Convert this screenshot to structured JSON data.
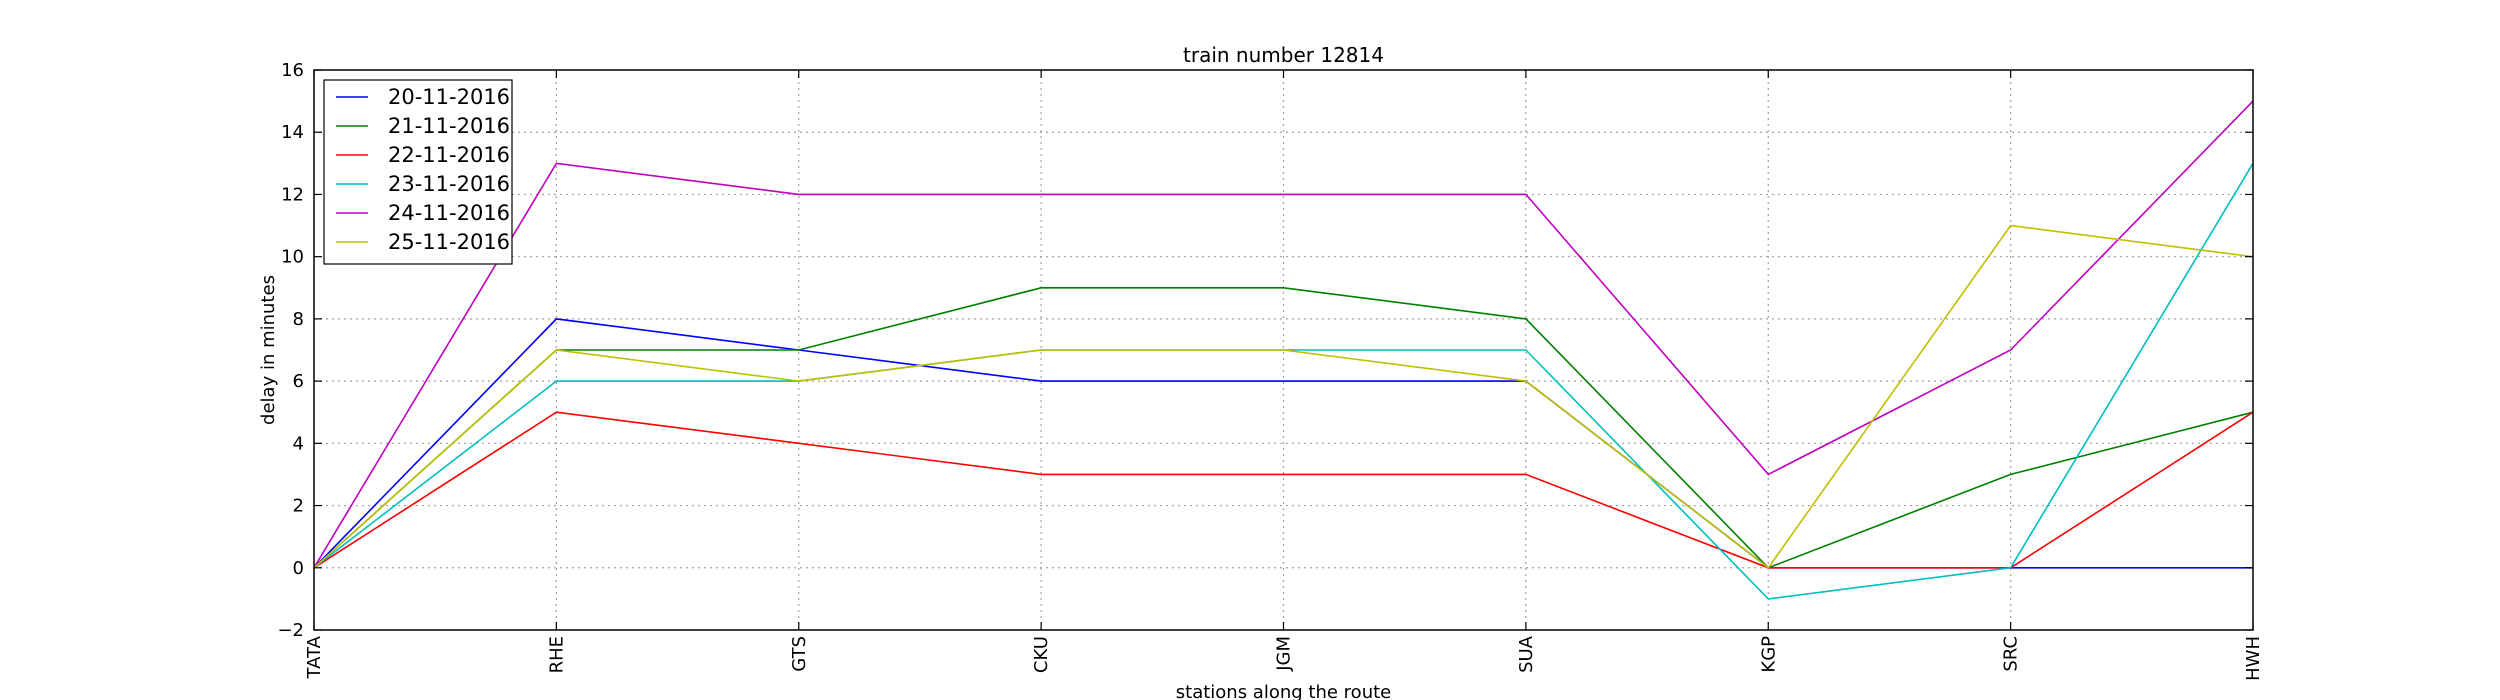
{
  "chart_data": {
    "type": "line",
    "title": "train number 12814",
    "xlabel": "stations along the route",
    "ylabel": "delay in minutes",
    "categories": [
      "TATA",
      "RHE",
      "GTS",
      "CKU",
      "JGM",
      "SUA",
      "KGP",
      "SRC",
      "HWH"
    ],
    "ylim": [
      -2,
      16
    ],
    "yticks": [
      -2,
      0,
      2,
      4,
      6,
      8,
      10,
      12,
      14,
      16
    ],
    "grid": true,
    "legend_position": "top-left",
    "series": [
      {
        "name": "20-11-2016",
        "color": "#0000ff",
        "values": [
          0,
          8,
          7,
          6,
          6,
          6,
          0,
          0,
          0
        ]
      },
      {
        "name": "21-11-2016",
        "color": "#008000",
        "values": [
          0,
          7,
          7,
          9,
          9,
          8,
          0,
          3,
          5
        ]
      },
      {
        "name": "22-11-2016",
        "color": "#ff0000",
        "values": [
          0,
          5,
          4,
          3,
          3,
          3,
          0,
          0,
          5
        ]
      },
      {
        "name": "23-11-2016",
        "color": "#00bfbf",
        "values": [
          0,
          6,
          6,
          7,
          7,
          7,
          -1,
          0,
          13
        ]
      },
      {
        "name": "24-11-2016",
        "color": "#bf00bf",
        "values": [
          0,
          13,
          12,
          12,
          12,
          12,
          3,
          7,
          15
        ]
      },
      {
        "name": "25-11-2016",
        "color": "#bfbf00",
        "values": [
          0,
          7,
          6,
          7,
          7,
          6,
          0,
          11,
          10
        ]
      }
    ]
  }
}
